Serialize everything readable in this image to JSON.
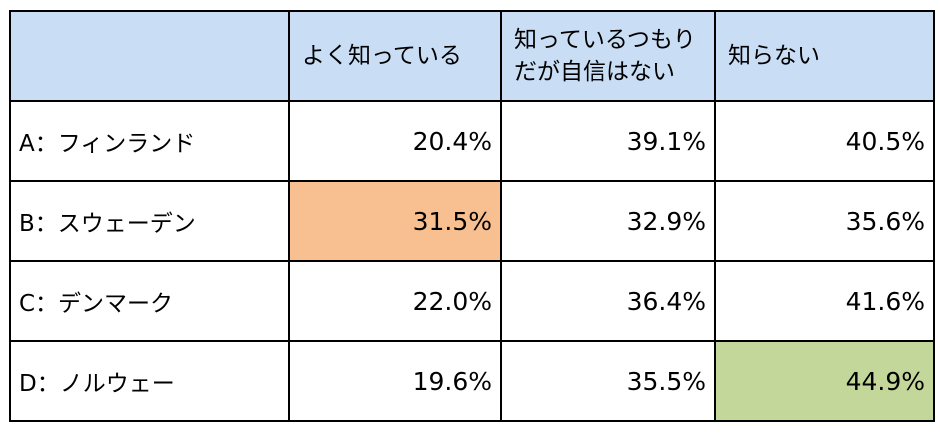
{
  "table": {
    "header": [
      {
        "lines": [
          "よく知っている"
        ]
      },
      {
        "lines": [
          "知っているつもり",
          "だが自信はない"
        ]
      },
      {
        "lines": [
          "知らない"
        ]
      }
    ],
    "rows": [
      {
        "label": "A：フィンランド",
        "cells": [
          {
            "text": "20.4%"
          },
          {
            "text": "39.1%"
          },
          {
            "text": "40.5%"
          }
        ]
      },
      {
        "label": "B：スウェーデン",
        "cells": [
          {
            "text": "31.5%",
            "fill": "#f8bf90"
          },
          {
            "text": "32.9%"
          },
          {
            "text": "35.6%"
          }
        ]
      },
      {
        "label": "C：デンマーク",
        "cells": [
          {
            "text": "22.0%"
          },
          {
            "text": "36.4%"
          },
          {
            "text": "41.6%"
          }
        ]
      },
      {
        "label": "D：ノルウェー",
        "cells": [
          {
            "text": "19.6%"
          },
          {
            "text": "35.5%"
          },
          {
            "text": "44.9%",
            "fill": "#c4d79b"
          }
        ]
      }
    ]
  }
}
